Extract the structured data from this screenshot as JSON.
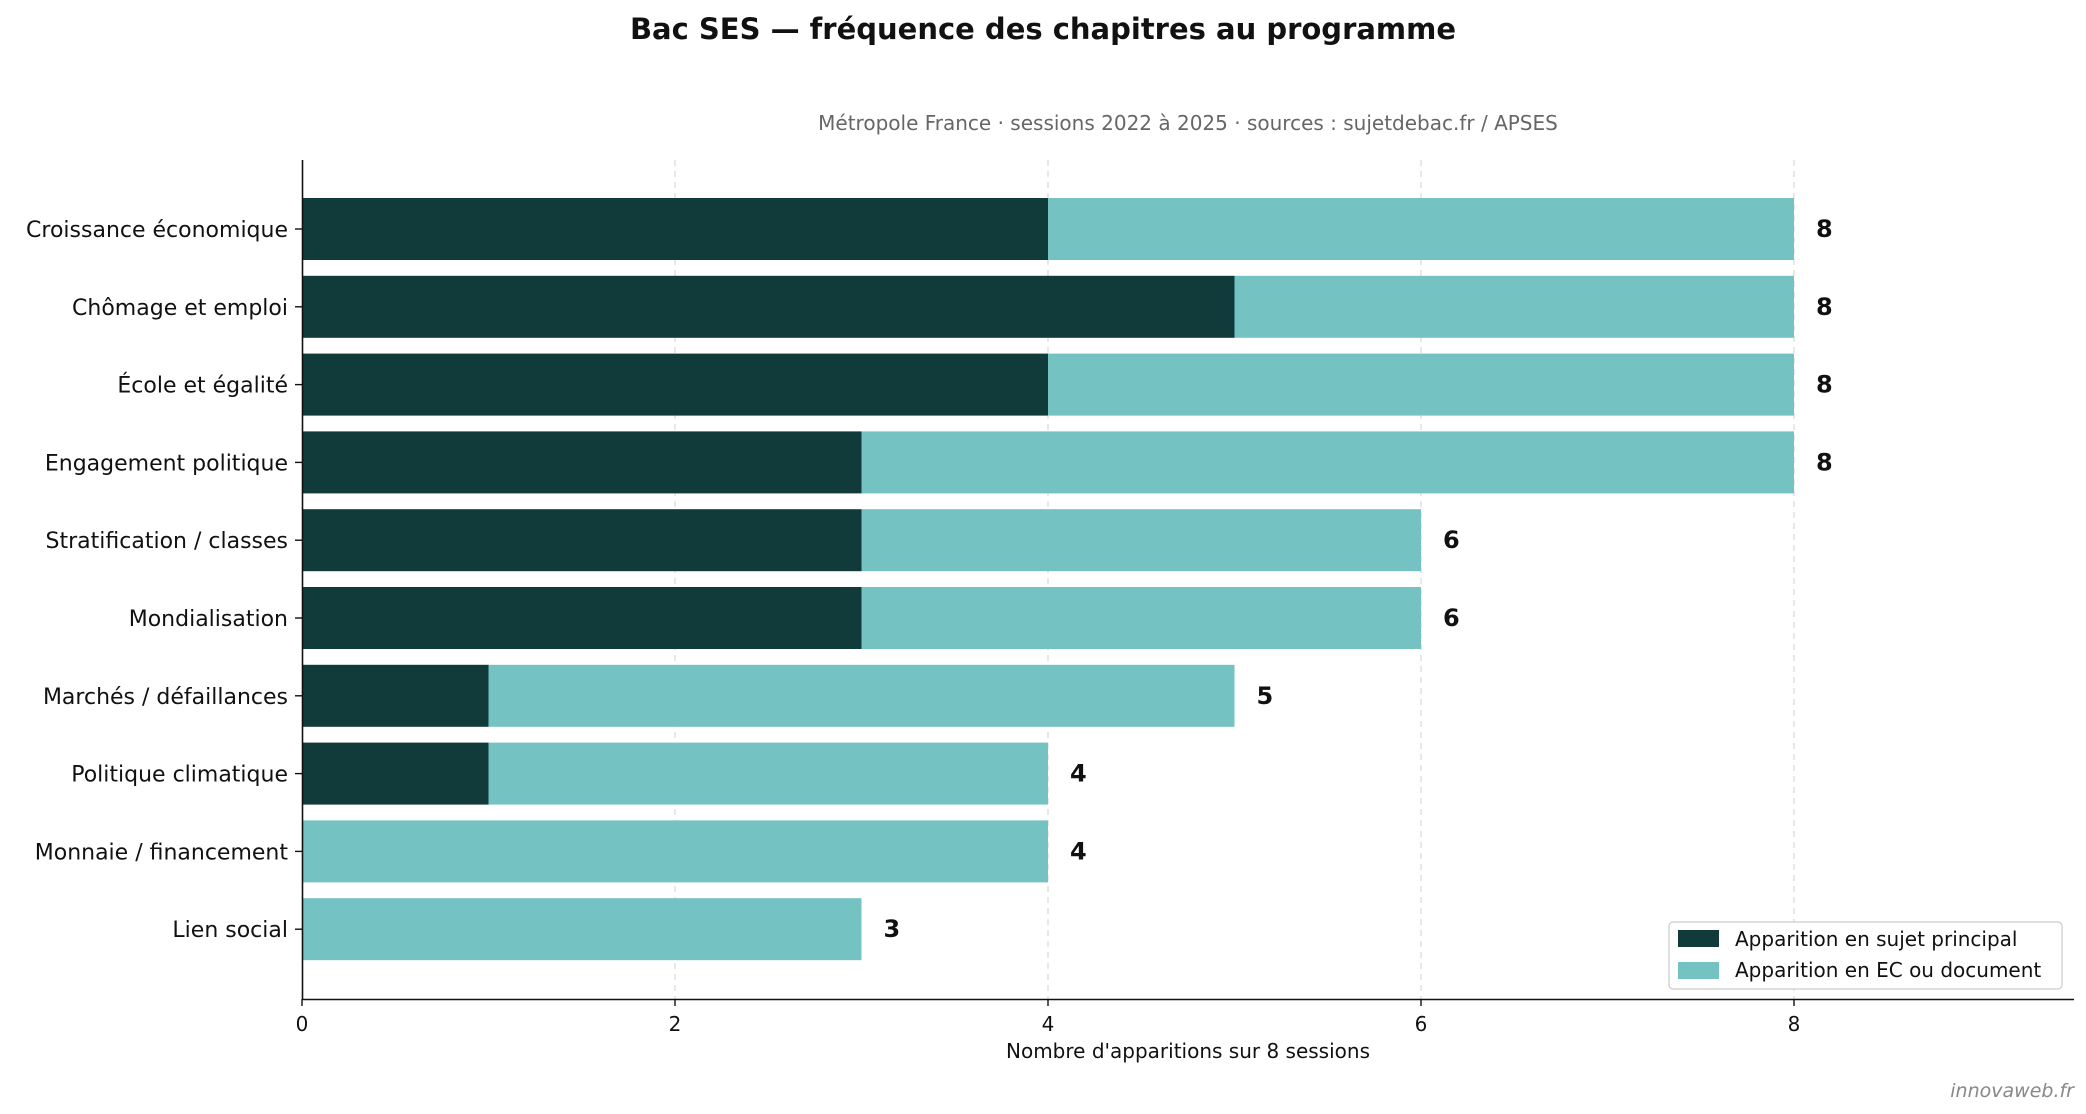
{
  "chart_data": {
    "type": "bar",
    "orientation": "horizontal",
    "stacked": true,
    "title": "Bac SES — fréquence des chapitres au programme",
    "subtitle": "Métropole France · sessions 2022 à 2025 · sources : sujetdebac.fr / APSES",
    "xlabel": "Nombre d'apparitions sur 8 sessions",
    "ylabel": "",
    "xlim": [
      0,
      9.5
    ],
    "xticks": [
      0,
      2,
      4,
      6,
      8
    ],
    "grid": "x, dashed",
    "legend_position": "bottom-right",
    "categories": [
      "Croissance économique",
      "Chômage et emploi",
      "École et égalité",
      "Engagement politique",
      "Stratification / classes",
      "Mondialisation",
      "Marchés / défaillances",
      "Politique climatique",
      "Monnaie / financement",
      "Lien social"
    ],
    "series": [
      {
        "name": "Apparition en sujet principal",
        "color": "#113a3a",
        "values": [
          4,
          5,
          4,
          3,
          3,
          3,
          1,
          1,
          0,
          0
        ]
      },
      {
        "name": "Apparition en EC ou document",
        "color": "#75c2c2",
        "values": [
          4,
          3,
          4,
          5,
          3,
          3,
          4,
          3,
          4,
          3
        ]
      }
    ],
    "totals": [
      "8",
      "8",
      "8",
      "8",
      "6",
      "6",
      "5",
      "4",
      "4",
      "3"
    ],
    "watermark": "innovaweb.fr"
  }
}
